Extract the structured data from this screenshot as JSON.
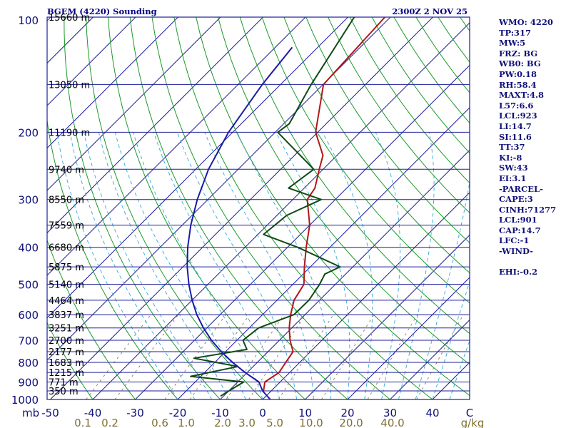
{
  "chart_data": {
    "type": "skew-t",
    "title": "BGEM (4220) Sounding",
    "valid_time": "2300Z  2 NOV 25",
    "pressure_unit": "mb",
    "temp_unit": "C",
    "mixing_ratio_unit": "g/kg",
    "p_range": [
      1000,
      100
    ],
    "t_range_at_bottom": [
      -50,
      50
    ],
    "pressure_levels": [
      {
        "p": 100,
        "label": "100",
        "height": "15660 m"
      },
      {
        "p": 150,
        "label": "",
        "height": "13050 m"
      },
      {
        "p": 200,
        "label": "200",
        "height": "11190 m"
      },
      {
        "p": 250,
        "label": "",
        "height": "9740 m"
      },
      {
        "p": 300,
        "label": "300",
        "height": "8550 m"
      },
      {
        "p": 350,
        "label": "",
        "height": "7559 m"
      },
      {
        "p": 400,
        "label": "400",
        "height": "6680 m"
      },
      {
        "p": 450,
        "label": "",
        "height": "5875 m"
      },
      {
        "p": 500,
        "label": "500",
        "height": "5140 m"
      },
      {
        "p": 550,
        "label": "",
        "height": "4464 m"
      },
      {
        "p": 600,
        "label": "600",
        "height": "3837 m"
      },
      {
        "p": 650,
        "label": "",
        "height": "3251 m"
      },
      {
        "p": 700,
        "label": "700",
        "height": "2700 m"
      },
      {
        "p": 750,
        "label": "",
        "height": "2177 m"
      },
      {
        "p": 800,
        "label": "800",
        "height": "1683 m"
      },
      {
        "p": 850,
        "label": "",
        "height": "1215 m"
      },
      {
        "p": 900,
        "label": "900",
        "height": "771 m"
      },
      {
        "p": 950,
        "label": "",
        "height": "350 m"
      },
      {
        "p": 1000,
        "label": "1000",
        "height": ""
      }
    ],
    "temp_ticks": [
      {
        "t": -50,
        "label": "-50"
      },
      {
        "t": -40,
        "label": "-40"
      },
      {
        "t": -30,
        "label": "-30"
      },
      {
        "t": -20,
        "label": "-20"
      },
      {
        "t": -10,
        "label": "-10"
      },
      {
        "t": 0,
        "label": "0"
      },
      {
        "t": 10,
        "label": "10"
      },
      {
        "t": 20,
        "label": "20"
      },
      {
        "t": 30,
        "label": "30"
      },
      {
        "t": 40,
        "label": "40"
      }
    ],
    "mixing_ratio_ticks": [
      "0.1",
      "0.2",
      "0.6",
      "1.0",
      "2.0",
      "3.0",
      "5.0",
      "10.0",
      "20.0",
      "40.0"
    ],
    "bottom_axis_text": {
      "left_unit": "mb",
      "right_unit": "C",
      "mr_unit": "g/kg"
    },
    "series": [
      {
        "name": "temperature",
        "color": "#b01818",
        "points": [
          [
            950,
            -1.8
          ],
          [
            900,
            -3.6
          ],
          [
            850,
            -2.5
          ],
          [
            800,
            -3.3
          ],
          [
            750,
            -4.1
          ],
          [
            700,
            -7.5
          ],
          [
            650,
            -10.6
          ],
          [
            600,
            -13.4
          ],
          [
            550,
            -16.0
          ],
          [
            500,
            -17.4
          ],
          [
            450,
            -21.4
          ],
          [
            400,
            -25.6
          ],
          [
            350,
            -30.0
          ],
          [
            300,
            -36.6
          ],
          [
            280,
            -37.5
          ],
          [
            250,
            -40.9
          ],
          [
            230,
            -43.3
          ],
          [
            200,
            -50.5
          ],
          [
            150,
            -59.9
          ],
          [
            100,
            -61.3
          ]
        ]
      },
      {
        "name": "dewpoint",
        "color": "#0e4a14",
        "points": [
          [
            980,
            -10.7
          ],
          [
            950,
            -10.0
          ],
          [
            900,
            -8.6
          ],
          [
            870,
            -22.4
          ],
          [
            820,
            -13.6
          ],
          [
            780,
            -25.9
          ],
          [
            740,
            -15.5
          ],
          [
            700,
            -18.6
          ],
          [
            650,
            -17.8
          ],
          [
            600,
            -12.6
          ],
          [
            550,
            -12.5
          ],
          [
            500,
            -13.7
          ],
          [
            470,
            -14.9
          ],
          [
            450,
            -13.0
          ],
          [
            400,
            -27.6
          ],
          [
            370,
            -38.7
          ],
          [
            330,
            -37.7
          ],
          [
            300,
            -33.3
          ],
          [
            280,
            -43.7
          ],
          [
            250,
            -42.2
          ],
          [
            200,
            -59.4
          ],
          [
            190,
            -58.7
          ],
          [
            150,
            -62.8
          ],
          [
            100,
            -68.5
          ]
        ]
      },
      {
        "name": "parcel",
        "color": "#1a1aa8",
        "points": [
          [
            1000,
            1.8
          ],
          [
            950,
            -2.0
          ],
          [
            900,
            -5.0
          ],
          [
            850,
            -10.5
          ],
          [
            800,
            -15.8
          ],
          [
            750,
            -21.0
          ],
          [
            700,
            -26.0
          ],
          [
            650,
            -30.8
          ],
          [
            600,
            -35.5
          ],
          [
            550,
            -40.0
          ],
          [
            500,
            -44.5
          ],
          [
            450,
            -49.0
          ],
          [
            400,
            -53.5
          ],
          [
            350,
            -58.0
          ],
          [
            300,
            -62.5
          ],
          [
            250,
            -67.0
          ],
          [
            200,
            -71.0
          ],
          [
            150,
            -74.3
          ],
          [
            120,
            -76.0
          ]
        ]
      }
    ]
  },
  "stats": [
    "WMO: 4220",
    "TP:317",
    "MW:5",
    "FRZ: BG",
    "WB0: BG",
    "PW:0.18",
    "RH:58.4",
    "MAXT:4.8",
    "L57:6.6",
    "LCL:923",
    "LI:14.7",
    "SI:11.6",
    "TT:37",
    "KI:-8",
    "SW:43",
    "EI:3.1",
    "-PARCEL-",
    "CAPE:3",
    "CINH:71277",
    "LCL:901",
    "CAP:14.7",
    "LFC:-1",
    "-WIND-",
    "",
    "EHI:-0.2"
  ],
  "colors": {
    "isobar": "#1e1e9a",
    "isotherm": "#1e1e9a",
    "dry_adiabat": "#1a9a2a",
    "moist_adiabat": "#34a8d8",
    "mixing_ratio": "#8a7850",
    "label_blue": "#10107a",
    "mr_label": "#807030",
    "text_dark": "#000080"
  }
}
